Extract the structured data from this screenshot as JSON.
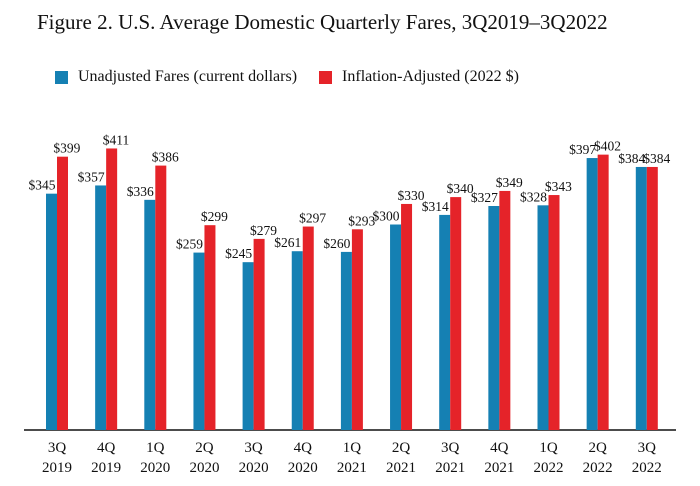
{
  "chart_data": {
    "type": "bar",
    "title": "Figure 2. U.S. Average Domestic Quarterly Fares, 3Q2019–3Q2022",
    "categories": [
      {
        "q": "3Q",
        "y": "2019"
      },
      {
        "q": "4Q",
        "y": "2019"
      },
      {
        "q": "1Q",
        "y": "2020"
      },
      {
        "q": "2Q",
        "y": "2020"
      },
      {
        "q": "3Q",
        "y": "2020"
      },
      {
        "q": "4Q",
        "y": "2020"
      },
      {
        "q": "1Q",
        "y": "2021"
      },
      {
        "q": "2Q",
        "y": "2021"
      },
      {
        "q": "3Q",
        "y": "2021"
      },
      {
        "q": "4Q",
        "y": "2021"
      },
      {
        "q": "1Q",
        "y": "2022"
      },
      {
        "q": "2Q",
        "y": "2022"
      },
      {
        "q": "3Q",
        "y": "2022"
      }
    ],
    "series": [
      {
        "name": "Unadjusted Fares (current dollars)",
        "color": "#1580b3",
        "values": [
          345,
          357,
          336,
          259,
          245,
          261,
          260,
          300,
          314,
          327,
          328,
          397,
          384
        ],
        "labels": [
          "$345",
          "$357",
          "$336",
          "$259",
          "$245",
          "$261",
          "$260",
          "$300",
          "$314",
          "$327",
          "$328",
          "$397",
          "$384"
        ]
      },
      {
        "name": "Inflation-Adjusted (2022 $)",
        "color": "#e52329",
        "values": [
          399,
          411,
          386,
          299,
          279,
          297,
          293,
          330,
          340,
          349,
          343,
          402,
          384
        ],
        "labels": [
          "$399",
          "$411",
          "$386",
          "$299",
          "$279",
          "$297",
          "$293",
          "$330",
          "$340",
          "$349",
          "$343",
          "$402",
          "$384"
        ]
      }
    ],
    "ylim": [
      0,
      430
    ],
    "grid": false,
    "legend_position": "top-left"
  }
}
